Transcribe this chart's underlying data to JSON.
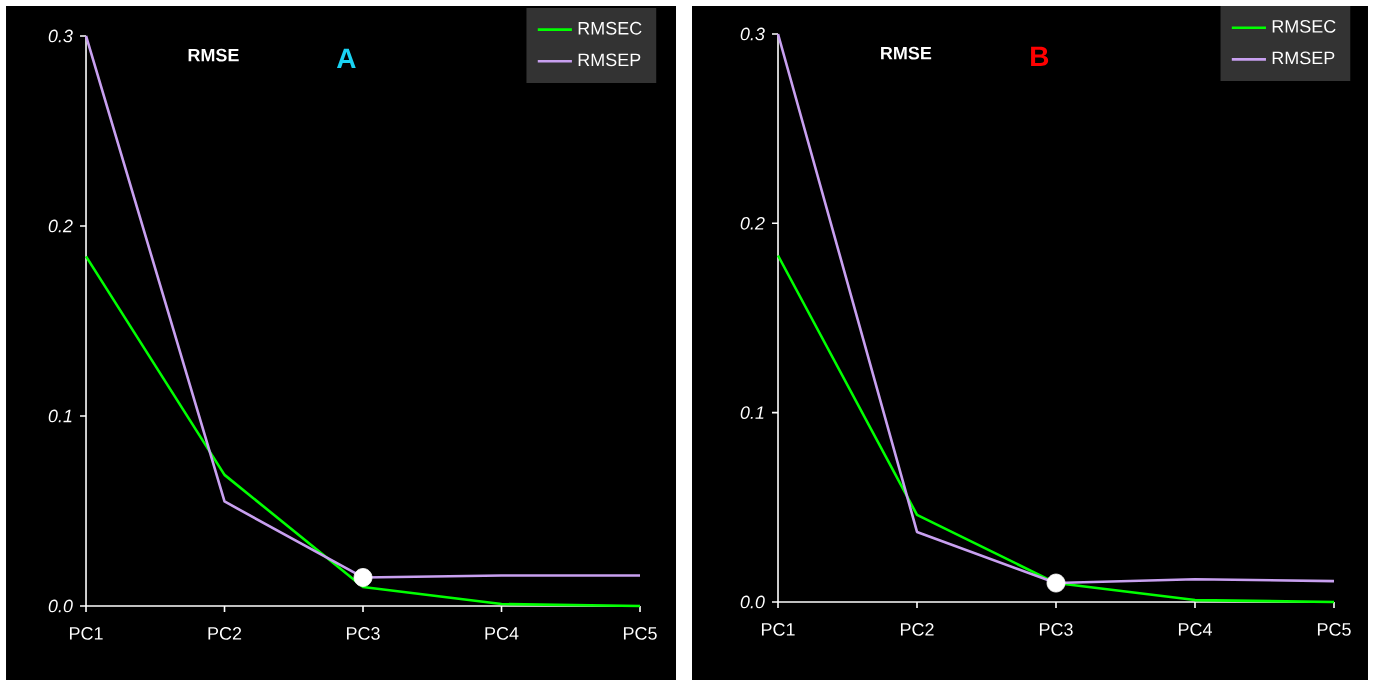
{
  "chart_data": [
    {
      "type": "line",
      "title": "A",
      "ylabel": "RMSE",
      "categories": [
        "PC1",
        "PC2",
        "PC3",
        "PC4",
        "PC5"
      ],
      "ylim": [
        0,
        0.3
      ],
      "yticks": [
        {
          "value": 0,
          "label": "0.0"
        },
        0.1,
        0.2,
        0.3
      ],
      "legend": "top right",
      "series": [
        {
          "name": "RMSEC",
          "color": "#00ff00",
          "marker": "none",
          "values": [
            0.184,
            0.069,
            0.01,
            0.001,
            0.0
          ]
        },
        {
          "name": "RMSEP",
          "color": "#c8a0f0",
          "marker": "none",
          "values": [
            0.3,
            0.055,
            0.015,
            0.016,
            0.016
          ]
        },
        {
          "type": "scatter",
          "marker": "circle",
          "color": "#ffffff",
          "x": [
            "PC3"
          ],
          "values": [
            0.015
          ]
        }
      ]
    },
    {
      "type": "line",
      "title": "B",
      "ylabel": "RMSE",
      "categories": [
        "PC1",
        "PC2",
        "PC3",
        "PC4",
        "PC5"
      ],
      "ylim": [
        0,
        0.3
      ],
      "yticks": [
        {
          "value": 0,
          "label": "0.0"
        },
        0.1,
        0.2,
        0.3
      ],
      "legend": "top right",
      "series": [
        {
          "name": "RMSEC",
          "color": "#00ff00",
          "marker": "none",
          "values": [
            0.183,
            0.046,
            0.01,
            0.001,
            0.0
          ]
        },
        {
          "name": "RMSEP",
          "color": "#c8a0f0",
          "marker": "none",
          "values": [
            0.3,
            0.037,
            0.01,
            0.012,
            0.011
          ]
        },
        {
          "type": "scatter",
          "marker": "circle",
          "color": "#ffffff",
          "x": [
            "PC3"
          ],
          "values": [
            0.01
          ]
        }
      ]
    }
  ]
}
